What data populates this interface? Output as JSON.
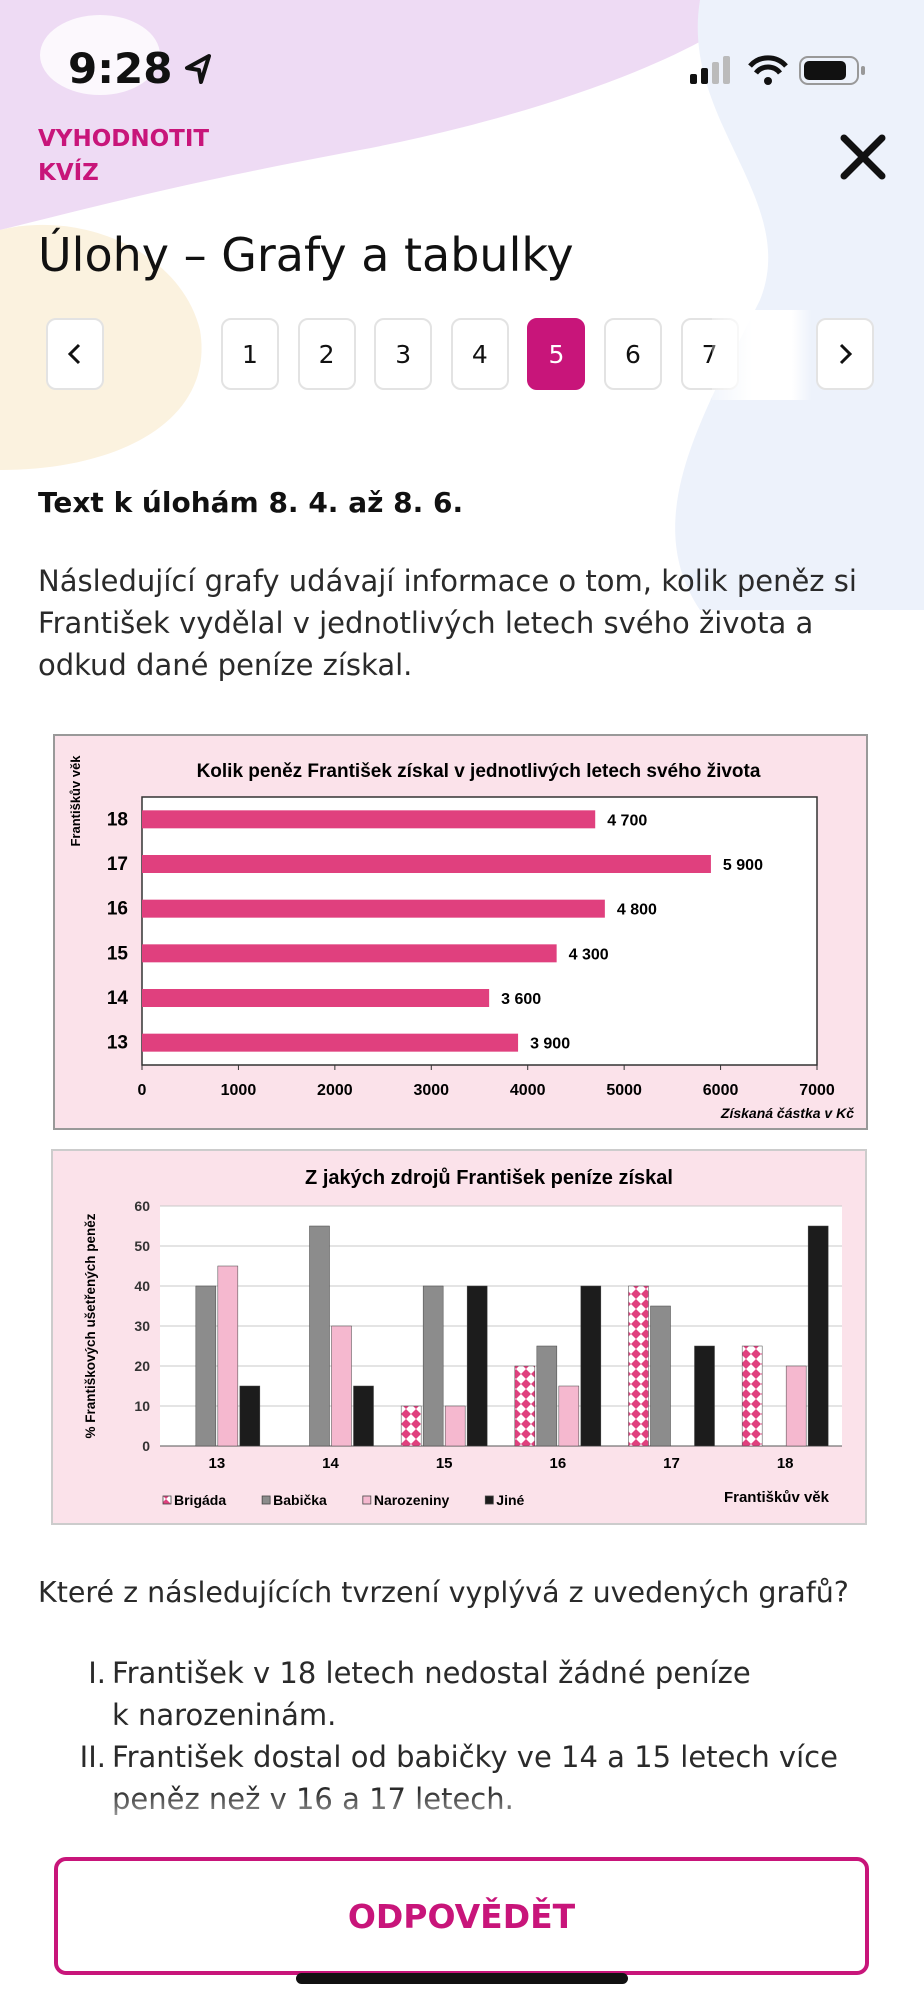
{
  "status": {
    "time": "9:28"
  },
  "header": {
    "action": "VYHODNOTIT KVÍZ",
    "title": "Úlohy – Grafy a tabulky"
  },
  "pagination": {
    "pages": [
      "1",
      "2",
      "3",
      "4",
      "5",
      "6",
      "7"
    ],
    "active": 5
  },
  "section": {
    "heading": "Text k úlohám 8. 4. až 8. 6.",
    "text": "Následující grafy udávají informace o tom, kolik peněz si František vydělal v jednotlivých letech svého života a odkud dané peníze získal."
  },
  "chart_data": [
    {
      "type": "bar",
      "orientation": "horizontal",
      "title": "Kolik peněz František získal v jednotlivých letech svého života",
      "y_label": "Františkův věk",
      "x_label": "Získaná částka v Kč",
      "categories": [
        "18",
        "17",
        "16",
        "15",
        "14",
        "13"
      ],
      "values": [
        4700,
        5900,
        4800,
        4300,
        3600,
        3900
      ],
      "value_labels": [
        "4 700",
        "5 900",
        "4 800",
        "4 300",
        "3 600",
        "3 900"
      ],
      "color": "#e0407e",
      "xlim": [
        0,
        7000
      ],
      "xticks": [
        0,
        1000,
        2000,
        3000,
        4000,
        5000,
        6000,
        7000
      ]
    },
    {
      "type": "grouped-bar",
      "title": "Z jakých zdrojů František peníze získal",
      "y_label": "% Františkových ušetřených peněz",
      "x_label": "Františkův věk",
      "categories": [
        "13",
        "14",
        "15",
        "16",
        "17",
        "18"
      ],
      "series": [
        {
          "name": "Brigáda",
          "color": "#e0407e",
          "pattern": "checkered",
          "values": [
            0,
            0,
            10,
            20,
            40,
            25
          ]
        },
        {
          "name": "Babička",
          "color": "#8c8c8c",
          "values": [
            40,
            55,
            40,
            25,
            35,
            0
          ]
        },
        {
          "name": "Narozeniny",
          "color": "#f5b8cf",
          "values": [
            45,
            30,
            10,
            15,
            0,
            20
          ]
        },
        {
          "name": "Jiné",
          "color": "#1c1c1c",
          "values": [
            15,
            15,
            40,
            40,
            25,
            55
          ]
        }
      ],
      "ylim": [
        0,
        60
      ],
      "yticks": [
        0,
        10,
        20,
        30,
        40,
        50,
        60
      ],
      "grid": true,
      "legend": "bottom"
    }
  ],
  "question": "Které z následujících tvrzení vyplývá z uvedených grafů?",
  "statements": [
    {
      "numeral": "I.",
      "text": "František v 18 letech nedostal žádné peníze k narozeninám."
    },
    {
      "numeral": "II.",
      "text": "František dostal od babičky ve 14 a 15 letech více peněz než v 16 a 17 letech."
    }
  ],
  "button": "ODPOVĚDĚT"
}
